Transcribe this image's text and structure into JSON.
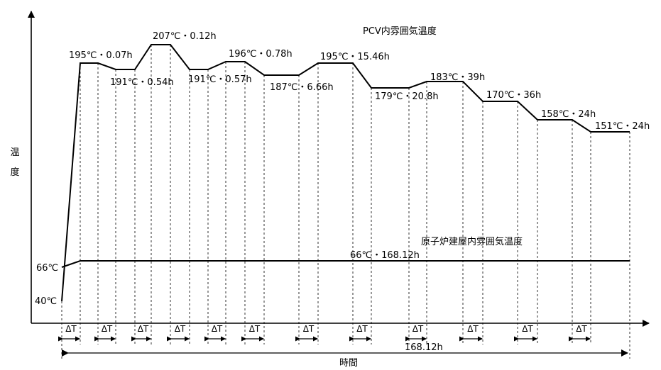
{
  "axes": {
    "y_label_chars": [
      "温",
      "度"
    ],
    "x_label": "時間",
    "total_duration_label": "168.12h",
    "delta_label": "ΔT"
  },
  "pcv": {
    "series_label": "PCV内雰囲気温度",
    "start_label": "40℃",
    "steps": [
      {
        "label": "195℃・0.07h"
      },
      {
        "label": "191℃・0.54h"
      },
      {
        "label": "207℃・0.12h"
      },
      {
        "label": "191℃・0.57h"
      },
      {
        "label": "196℃・0.78h"
      },
      {
        "label": "187℃・6.66h"
      },
      {
        "label": "195℃・15.46h"
      },
      {
        "label": "179℃・20.8h"
      },
      {
        "label": "183℃・39h"
      },
      {
        "label": "170℃・36h"
      },
      {
        "label": "158℃・24h"
      },
      {
        "label": "151℃・24h"
      }
    ]
  },
  "reactor_building": {
    "series_label": "原子炉建屋内雰囲気温度",
    "start_label": "66℃",
    "step_label": "66℃・168.12h"
  }
}
